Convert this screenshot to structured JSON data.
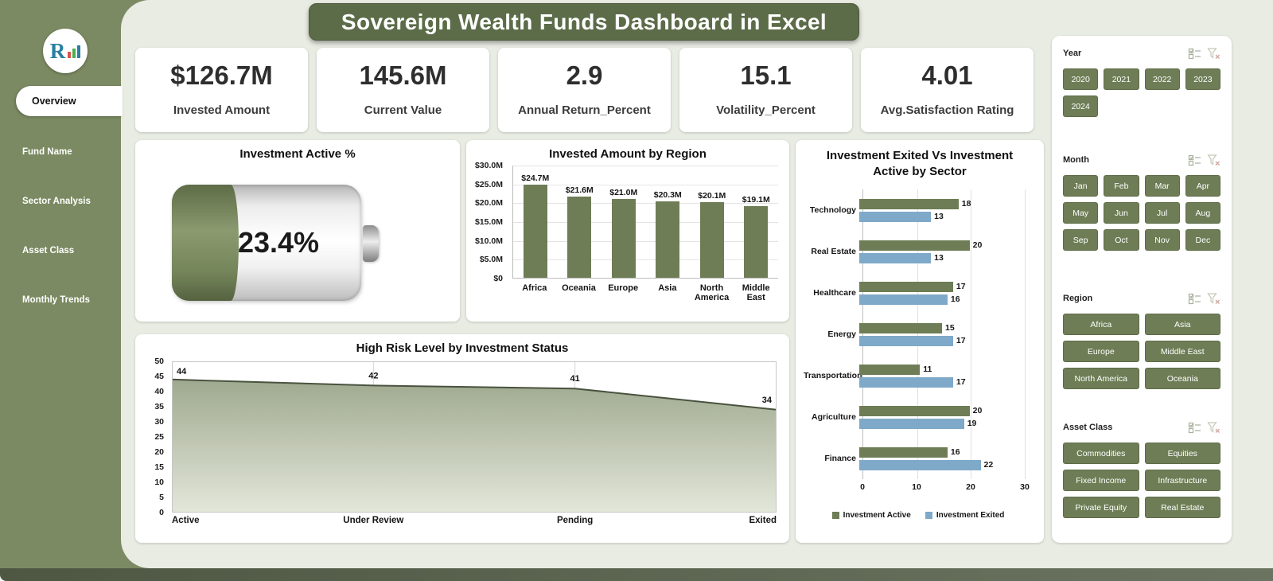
{
  "title": "Sovereign Wealth Funds Dashboard in Excel",
  "logo": {
    "letter": "R"
  },
  "sidebar": {
    "items": [
      {
        "label": "Overview",
        "active": true
      },
      {
        "label": "Fund Name",
        "active": false
      },
      {
        "label": "Sector Analysis",
        "active": false
      },
      {
        "label": "Asset Class",
        "active": false
      },
      {
        "label": "Monthly Trends",
        "active": false
      }
    ]
  },
  "kpis": [
    {
      "value": "$126.7M",
      "label": "Invested Amount"
    },
    {
      "value": "145.6M",
      "label": "Current Value"
    },
    {
      "value": "2.9",
      "label": "Annual Return_Percent"
    },
    {
      "value": "15.1",
      "label": "Volatility_Percent"
    },
    {
      "value": "4.01",
      "label": "Avg.Satisfaction Rating"
    }
  ],
  "gauge": {
    "title": "Investment Active %",
    "value": "23.4%"
  },
  "chart_data": [
    {
      "type": "bar",
      "title": "Invested Amount by Region",
      "categories": [
        "Africa",
        "Oceania",
        "Europe",
        "Asia",
        "North America",
        "Middle East"
      ],
      "values": [
        24.7,
        21.6,
        21.0,
        20.3,
        20.1,
        19.1
      ],
      "data_labels": [
        "$24.7M",
        "$21.6M",
        "$21.0M",
        "$20.3M",
        "$20.1M",
        "$19.1M"
      ],
      "ylim": [
        0,
        30
      ],
      "yticks": [
        "$30.0M",
        "$25.0M",
        "$20.0M",
        "$15.0M",
        "$10.0M",
        "$5.0M",
        "$0"
      ],
      "bar_color": "#6e7d55",
      "grid": true
    },
    {
      "type": "bar",
      "orientation": "horizontal",
      "title": "Investment Exited Vs Investment Active by Sector",
      "categories": [
        "Technology",
        "Real Estate",
        "Healthcare",
        "Energy",
        "Transportation",
        "Agriculture",
        "Finance"
      ],
      "series": [
        {
          "name": "Investment  Active",
          "color": "#6e7d55",
          "values": [
            18,
            20,
            17,
            15,
            11,
            20,
            16
          ]
        },
        {
          "name": "Investment  Exited",
          "color": "#7fa9c9",
          "values": [
            13,
            13,
            16,
            17,
            17,
            19,
            22
          ]
        }
      ],
      "xlim": [
        0,
        30
      ],
      "xticks": [
        "0",
        "10",
        "20",
        "30"
      ],
      "legend_position": "bottom"
    },
    {
      "type": "area",
      "title": "High Risk Level by Investment Status",
      "categories": [
        "Active",
        "Under Review",
        "Pending",
        "Exited"
      ],
      "values": [
        44,
        42,
        41,
        34
      ],
      "ylim": [
        0,
        50
      ],
      "yticks": [
        "50",
        "45",
        "40",
        "35",
        "30",
        "25",
        "20",
        "15",
        "10",
        "5",
        "0"
      ],
      "line_color": "#49523e",
      "fill_top": "#9fa98f",
      "fill_bottom": "#e3e7da"
    }
  ],
  "slicers": [
    {
      "title": "Year",
      "columns": 4,
      "items": [
        "2020",
        "2021",
        "2022",
        "2023",
        "2024"
      ],
      "icons": [
        "multiselect-icon",
        "clear-filter-icon"
      ]
    },
    {
      "title": "Month",
      "columns": 4,
      "items": [
        "Jan",
        "Feb",
        "Mar",
        "Apr",
        "May",
        "Jun",
        "Jul",
        "Aug",
        "Sep",
        "Oct",
        "Nov",
        "Dec"
      ],
      "icons": [
        "multiselect-icon",
        "clear-filter-icon"
      ]
    },
    {
      "title": "Region",
      "columns": 2,
      "items": [
        "Africa",
        "Asia",
        "Europe",
        "Middle East",
        "North America",
        "Oceania"
      ],
      "icons": [
        "multiselect-icon",
        "clear-filter-icon"
      ]
    },
    {
      "title": "Asset Class",
      "columns": 2,
      "items": [
        "Commodities",
        "Equities",
        "Fixed Income",
        "Infrastructure",
        "Private Equity",
        "Real Estate"
      ],
      "icons": [
        "multiselect-icon",
        "clear-filter-icon"
      ]
    }
  ],
  "colors": {
    "accent_olive": "#6e7d55",
    "banner_green": "#5c6c49",
    "sidebar_olive": "#7b8a62",
    "background_sage": "#e9ece3",
    "bar_blue": "#7fa9c9"
  }
}
